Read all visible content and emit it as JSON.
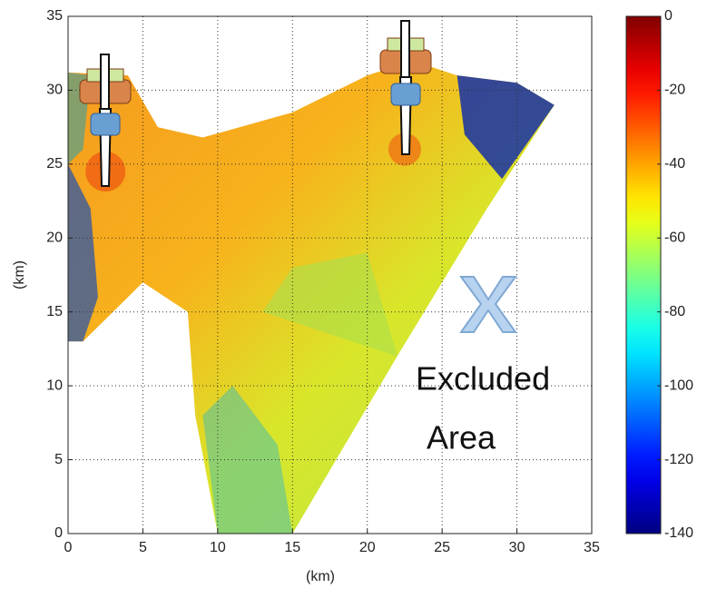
{
  "chart_data": {
    "type": "heatmap",
    "xlabel": "(km)",
    "ylabel": "(km)",
    "xlim": [
      0,
      35
    ],
    "xticks": [
      0,
      5,
      10,
      15,
      20,
      25,
      30,
      35
    ],
    "ylim": [
      0,
      35
    ],
    "yticks": [
      0,
      5,
      10,
      15,
      20,
      25,
      30,
      35
    ],
    "grid": true,
    "colorbar": {
      "colormap": "jet",
      "lim": [
        -140,
        0
      ],
      "ticks": [
        0,
        -20,
        -40,
        -60,
        -80,
        -100,
        -120,
        -140
      ]
    },
    "annotation": [
      "Excluded",
      "Area"
    ]
  }
}
